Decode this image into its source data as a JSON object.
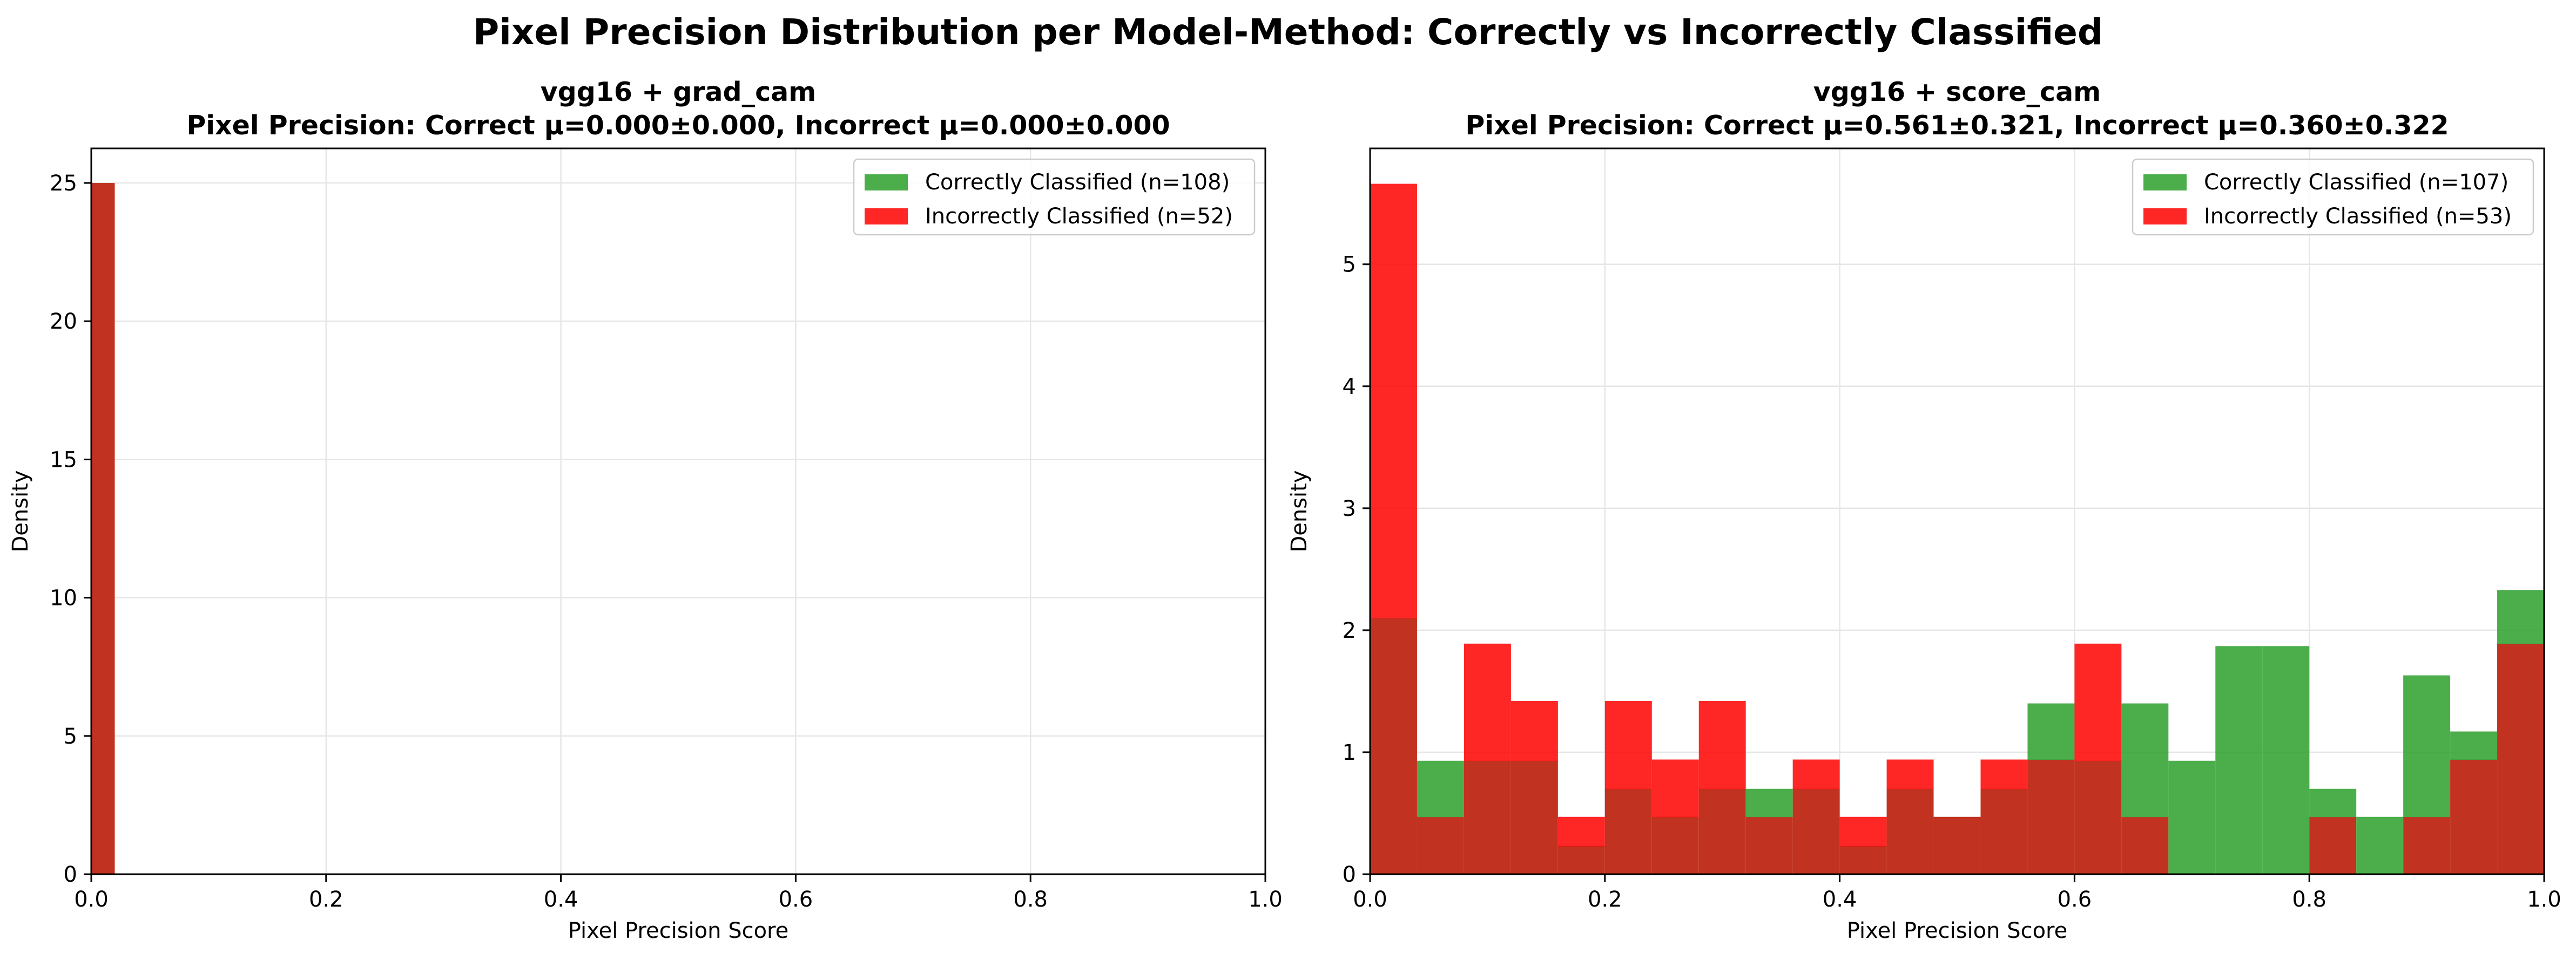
{
  "figure": {
    "title": "Pixel Precision Distribution per Model-Method: Correctly vs Incorrectly Classified"
  },
  "colors": {
    "correct": "#2ca02c",
    "incorrect": "#ff0000",
    "overlap": "#c23220",
    "grid": "#e6e6e6"
  },
  "chart_data": [
    {
      "type": "bar",
      "title": "vgg16 + grad_cam",
      "subtitle": "Pixel Precision: Correct μ=0.000±0.000, Incorrect μ=0.000±0.000",
      "xlabel": "Pixel Precision Score",
      "ylabel": "Density",
      "xlim": [
        0,
        1
      ],
      "ylim": [
        0,
        26.25
      ],
      "xticks": [
        0.0,
        0.2,
        0.4,
        0.6,
        0.8,
        1.0
      ],
      "xtick_labels": [
        "0.0",
        "0.2",
        "0.4",
        "0.6",
        "0.8",
        "1.0"
      ],
      "yticks": [
        0,
        5,
        10,
        15,
        20,
        25
      ],
      "ytick_labels": [
        "0",
        "5",
        "10",
        "15",
        "20",
        "25"
      ],
      "grid": true,
      "legend": "top-right",
      "bin_width": 0.02,
      "series": [
        {
          "name": "Correctly Classified (n=108)",
          "color": "#2ca02c",
          "bins": [
            0.0
          ],
          "values": [
            25
          ]
        },
        {
          "name": "Incorrectly Classified (n=52)",
          "color": "#ff0000",
          "bins": [
            0.0
          ],
          "values": [
            25
          ]
        }
      ]
    },
    {
      "type": "bar",
      "title": "vgg16 + score_cam",
      "subtitle": "Pixel Precision: Correct μ=0.561±0.321, Incorrect μ=0.360±0.322",
      "xlabel": "Pixel Precision Score",
      "ylabel": "Density",
      "xlim": [
        0,
        1
      ],
      "ylim": [
        0,
        5.95
      ],
      "xticks": [
        0.0,
        0.2,
        0.4,
        0.6,
        0.8,
        1.0
      ],
      "xtick_labels": [
        "0.0",
        "0.2",
        "0.4",
        "0.6",
        "0.8",
        "1.0"
      ],
      "yticks": [
        0,
        1,
        2,
        3,
        4,
        5
      ],
      "ytick_labels": [
        "0",
        "1",
        "2",
        "3",
        "4",
        "5"
      ],
      "grid": true,
      "legend": "top-right",
      "bin_width": 0.04,
      "series": [
        {
          "name": "Correctly Classified (n=107)",
          "color": "#2ca02c",
          "bins": [
            0.0,
            0.04,
            0.08,
            0.12,
            0.16,
            0.2,
            0.24,
            0.28,
            0.32,
            0.36,
            0.4,
            0.44,
            0.48,
            0.52,
            0.56,
            0.6,
            0.64,
            0.68,
            0.72,
            0.76,
            0.8,
            0.84,
            0.88,
            0.92,
            0.96
          ],
          "values": [
            2.1,
            0.93,
            0.93,
            0.93,
            0.23,
            0.7,
            0.47,
            0.7,
            0.7,
            0.7,
            0.23,
            0.7,
            0.47,
            0.7,
            1.4,
            0.93,
            1.4,
            0.93,
            1.87,
            1.87,
            0.7,
            0.47,
            1.63,
            1.17,
            2.33
          ]
        },
        {
          "name": "Incorrectly Classified (n=53)",
          "color": "#ff0000",
          "bins": [
            0.0,
            0.04,
            0.08,
            0.12,
            0.16,
            0.2,
            0.24,
            0.28,
            0.32,
            0.36,
            0.4,
            0.44,
            0.48,
            0.52,
            0.56,
            0.6,
            0.64,
            0.68,
            0.72,
            0.76,
            0.8,
            0.84,
            0.88,
            0.92,
            0.96
          ],
          "values": [
            5.66,
            0.47,
            1.89,
            1.42,
            0.47,
            1.42,
            0.94,
            1.42,
            0.47,
            0.94,
            0.47,
            0.94,
            0.47,
            0.94,
            0.94,
            1.89,
            0.47,
            0.0,
            0.0,
            0.0,
            0.47,
            0.0,
            0.47,
            0.94,
            1.89
          ]
        }
      ]
    }
  ]
}
